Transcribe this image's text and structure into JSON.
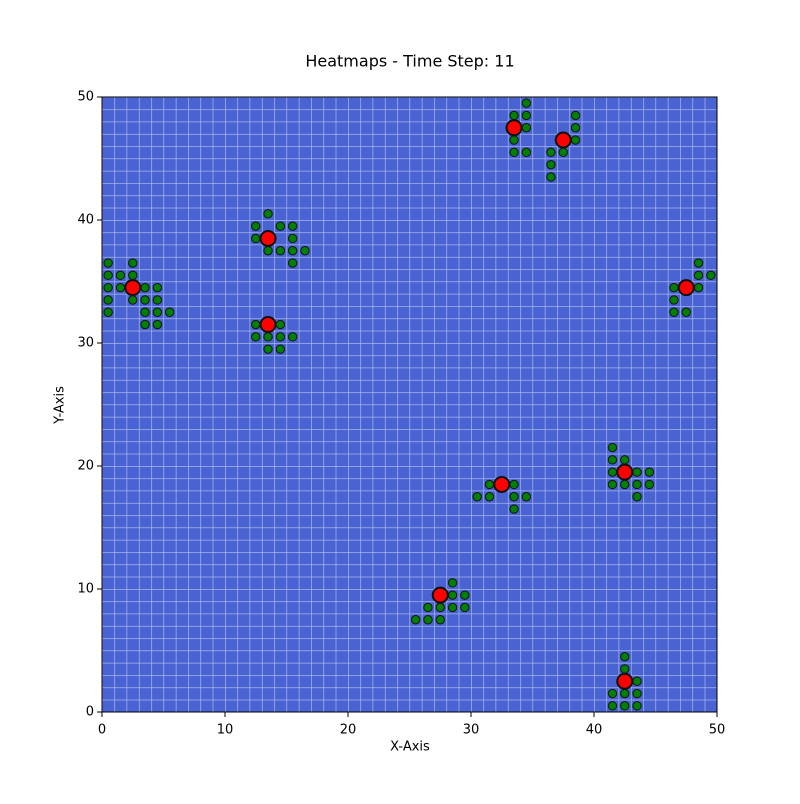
{
  "chart_data": {
    "type": "scatter",
    "title": "Heatmaps - Time Step: 11",
    "x_label": "X-Axis",
    "y_label": "Y-Axis",
    "xlim": [
      0,
      50
    ],
    "ylim": [
      0,
      50
    ],
    "xticks": [
      0,
      10,
      20,
      30,
      40,
      50
    ],
    "yticks": [
      0,
      10,
      20,
      30,
      40,
      50
    ],
    "series": [
      {
        "color": "#008000",
        "x": [
          0.5,
          2.5,
          0.5,
          1.5,
          2.5,
          0.5,
          1.5,
          3.5,
          4.5,
          0.5,
          2.5,
          3.5,
          4.5,
          0.5,
          3.5,
          4.5,
          5.5,
          3.5,
          4.5,
          13.5,
          12.5,
          14.5,
          15.5,
          12.5,
          15.5,
          13.5,
          14.5,
          15.5,
          16.5,
          15.5,
          12.5,
          14.5,
          12.5,
          13.5,
          14.5,
          15.5,
          13.5,
          14.5,
          34.5,
          33.5,
          34.5,
          34.5,
          33.5,
          33.5,
          34.5,
          38.5,
          38.5,
          38.5,
          36.5,
          37.5,
          36.5,
          36.5,
          48.5,
          48.5,
          49.5,
          46.5,
          48.5,
          46.5,
          46.5,
          47.5,
          41.5,
          41.5,
          42.5,
          41.5,
          43.5,
          44.5,
          41.5,
          42.5,
          43.5,
          44.5,
          43.5,
          31.5,
          33.5,
          30.5,
          31.5,
          33.5,
          34.5,
          33.5,
          28.5,
          28.5,
          29.5,
          26.5,
          27.5,
          28.5,
          29.5,
          25.5,
          26.5,
          27.5,
          42.5,
          42.5,
          43.5,
          41.5,
          42.5,
          43.5,
          41.5,
          42.5,
          43.5
        ],
        "y": [
          36.5,
          36.5,
          35.5,
          35.5,
          35.5,
          34.5,
          34.5,
          34.5,
          34.5,
          33.5,
          33.5,
          33.5,
          33.5,
          32.5,
          32.5,
          32.5,
          32.5,
          31.5,
          31.5,
          40.5,
          39.5,
          39.5,
          39.5,
          38.5,
          38.5,
          37.5,
          37.5,
          37.5,
          37.5,
          36.5,
          31.5,
          31.5,
          30.5,
          30.5,
          30.5,
          30.5,
          29.5,
          29.5,
          49.5,
          48.5,
          48.5,
          47.5,
          46.5,
          45.5,
          45.5,
          48.5,
          47.5,
          46.5,
          45.5,
          45.5,
          44.5,
          43.5,
          36.5,
          35.5,
          35.5,
          34.5,
          34.5,
          33.5,
          32.5,
          32.5,
          21.5,
          20.5,
          20.5,
          19.5,
          19.5,
          19.5,
          18.5,
          18.5,
          18.5,
          18.5,
          17.5,
          18.5,
          18.5,
          17.5,
          17.5,
          17.5,
          17.5,
          16.5,
          10.5,
          9.5,
          9.5,
          8.5,
          8.5,
          8.5,
          8.5,
          7.5,
          7.5,
          7.5,
          4.5,
          3.5,
          2.5,
          1.5,
          1.5,
          1.5,
          0.5,
          0.5,
          0.5
        ]
      },
      {
        "color": "#ff0000",
        "x": [
          2.5,
          13.5,
          13.5,
          33.5,
          37.5,
          47.5,
          42.5,
          32.5,
          27.5,
          42.5
        ],
        "y": [
          34.5,
          38.5,
          31.5,
          47.5,
          46.5,
          34.5,
          19.5,
          18.5,
          9.5,
          2.5
        ]
      }
    ]
  }
}
